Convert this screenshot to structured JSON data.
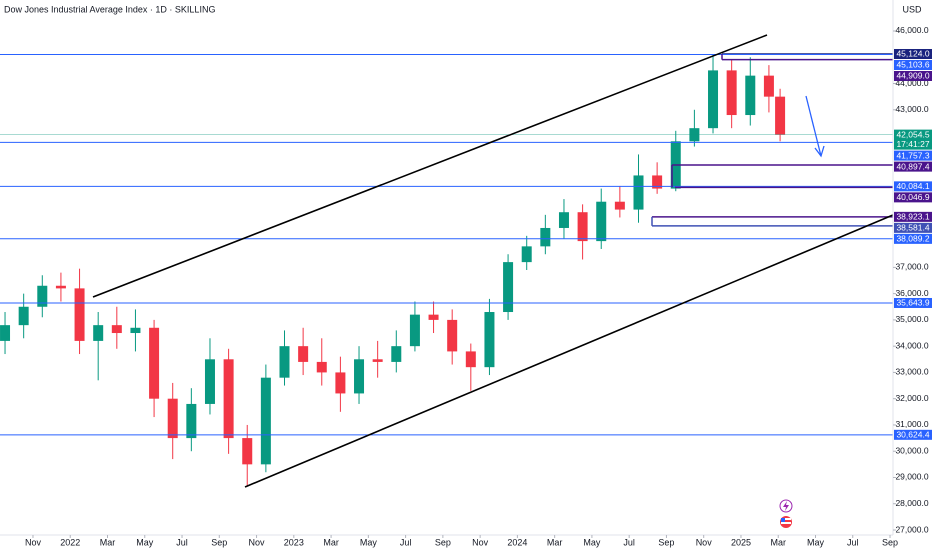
{
  "chart_data": {
    "type": "candlestick",
    "title": "Dow Jones Industrial Average Index · 1D · SKILLING",
    "currency": "USD",
    "up_color": "#089981",
    "down_color": "#f23645",
    "x": [
      -1.5,
      -0.5,
      0.5,
      1.5,
      2.5,
      3.5,
      4.5,
      5.5,
      6.5,
      7.5,
      8.5,
      9.5,
      10.5,
      11.5,
      12.5,
      13.5,
      14.5,
      15.5,
      16.5,
      17.5,
      18.5,
      19.5,
      20.5,
      21.5,
      22.5,
      23.5,
      24.5,
      25.5,
      26.5,
      27.5,
      28.5,
      29.5,
      30.5,
      31.5,
      32.5,
      33.5,
      34.5,
      35.5,
      36.5,
      37.5,
      38.5,
      39.5,
      40.1
    ],
    "open": [
      34200,
      34800,
      35500,
      36300,
      36200,
      34200,
      34800,
      34500,
      34700,
      32000,
      30500,
      31800,
      33500,
      30500,
      29500,
      32800,
      34000,
      33400,
      33000,
      32200,
      33500,
      33400,
      34000,
      35200,
      35000,
      33800,
      33200,
      35300,
      37200,
      37800,
      38500,
      39100,
      38000,
      39500,
      39200,
      40500,
      40000,
      41800,
      42300,
      44500,
      42800,
      44300,
      43500
    ],
    "high": [
      35300,
      36000,
      36700,
      36800,
      36950,
      35300,
      35500,
      35400,
      35000,
      32600,
      32400,
      34300,
      33900,
      31000,
      33300,
      34600,
      34700,
      34300,
      33600,
      34000,
      34200,
      34600,
      35700,
      35700,
      35400,
      34100,
      35800,
      37500,
      38200,
      39000,
      39600,
      39400,
      40000,
      40100,
      41300,
      41000,
      42200,
      43000,
      45100,
      44900,
      45000,
      44700,
      43800
    ],
    "low": [
      33700,
      34300,
      35100,
      35700,
      33700,
      32700,
      33900,
      33800,
      31300,
      29700,
      30000,
      31400,
      29900,
      28700,
      29200,
      32500,
      32900,
      32500,
      31500,
      31800,
      32800,
      33000,
      33800,
      34500,
      33300,
      32300,
      32900,
      35000,
      36900,
      37500,
      38100,
      37300,
      37700,
      38900,
      38700,
      39800,
      39900,
      41600,
      42100,
      42300,
      42400,
      42900,
      41800
    ],
    "close": [
      34800,
      35500,
      36300,
      36200,
      34200,
      34800,
      34500,
      34700,
      32000,
      30500,
      31800,
      33500,
      30500,
      29500,
      32800,
      34000,
      33400,
      33000,
      32200,
      33500,
      33400,
      34000,
      35200,
      35000,
      33800,
      33200,
      35300,
      37200,
      37800,
      38500,
      39100,
      38000,
      39500,
      39200,
      40500,
      40000,
      41800,
      42300,
      44500,
      42800,
      44300,
      43500,
      42054.5
    ],
    "xlim": [
      -1.77,
      46.16
    ],
    "xticks": [
      {
        "value": 0,
        "label": "Nov"
      },
      {
        "value": 2,
        "label": "2022"
      },
      {
        "value": 4,
        "label": "Mar"
      },
      {
        "value": 6,
        "label": "May"
      },
      {
        "value": 8,
        "label": "Jul"
      },
      {
        "value": 10,
        "label": "Sep"
      },
      {
        "value": 12,
        "label": "Nov"
      },
      {
        "value": 14,
        "label": "2023"
      },
      {
        "value": 16,
        "label": "Mar"
      },
      {
        "value": 18,
        "label": "May"
      },
      {
        "value": 20,
        "label": "Jul"
      },
      {
        "value": 22,
        "label": "Sep"
      },
      {
        "value": 24,
        "label": "Nov"
      },
      {
        "value": 26,
        "label": "2024"
      },
      {
        "value": 28,
        "label": "Mar"
      },
      {
        "value": 30,
        "label": "May"
      },
      {
        "value": 32,
        "label": "Jul"
      },
      {
        "value": 34,
        "label": "Sep"
      },
      {
        "value": 36,
        "label": "Nov"
      },
      {
        "value": 38,
        "label": "2025"
      },
      {
        "value": 40,
        "label": "Mar"
      },
      {
        "value": 42,
        "label": "May"
      },
      {
        "value": 44,
        "label": "Jul"
      },
      {
        "value": 46,
        "label": "Sep"
      }
    ],
    "ylim": [
      26810,
      47180
    ],
    "yticks": [
      {
        "value": 46000,
        "label": "46,000.0"
      },
      {
        "value": 44000,
        "label": "44,000.0"
      },
      {
        "value": 43000,
        "label": "43,000.0"
      },
      {
        "value": 37000,
        "label": "37,000.0"
      },
      {
        "value": 36000,
        "label": "36,000.0"
      },
      {
        "value": 35000,
        "label": "35,000.0"
      },
      {
        "value": 34000,
        "label": "34,000.0"
      },
      {
        "value": 33000,
        "label": "33,000.0"
      },
      {
        "value": 32000,
        "label": "32,000.0"
      },
      {
        "value": 31000,
        "label": "31,000.0"
      },
      {
        "value": 30000,
        "label": "30,000.0"
      },
      {
        "value": 29000,
        "label": "29,000.0"
      },
      {
        "value": 28000,
        "label": "28,000.0"
      },
      {
        "value": 27000,
        "label": "27,000.0"
      }
    ],
    "current": {
      "value": 42054.5,
      "label": "42,054.5",
      "countdown": "17:41:27",
      "color": "#089981"
    },
    "levels": [
      {
        "value": 45124.0,
        "label": "45,124.0",
        "color": "#1a237e",
        "kind": "box"
      },
      {
        "value": 45103.6,
        "label": "45,103.6",
        "color": "#2962ff",
        "kind": "line"
      },
      {
        "value": 44909.0,
        "label": "44,909.0",
        "color": "#4a148c",
        "kind": "box"
      },
      {
        "value": 41757.3,
        "label": "41,757.3",
        "color": "#2962ff",
        "kind": "line"
      },
      {
        "value": 40897.4,
        "label": "40,897.4",
        "color": "#4a148c",
        "kind": "box"
      },
      {
        "value": 40084.1,
        "label": "40,084.1",
        "color": "#2962ff",
        "kind": "line"
      },
      {
        "value": 40046.9,
        "label": "40,046.9",
        "color": "#4a148c",
        "kind": "box"
      },
      {
        "value": 38923.1,
        "label": "38,923.1",
        "color": "#4a148c",
        "kind": "box"
      },
      {
        "value": 38581.4,
        "label": "38,581.4",
        "color": "#3f51b5",
        "kind": "box"
      },
      {
        "value": 38089.2,
        "label": "38,089.2",
        "color": "#2962ff",
        "kind": "line"
      },
      {
        "value": 35643.9,
        "label": "35,643.9",
        "color": "#2962ff",
        "kind": "line"
      },
      {
        "value": 30624.4,
        "label": "30,624.4",
        "color": "#2962ff",
        "kind": "line"
      }
    ]
  }
}
